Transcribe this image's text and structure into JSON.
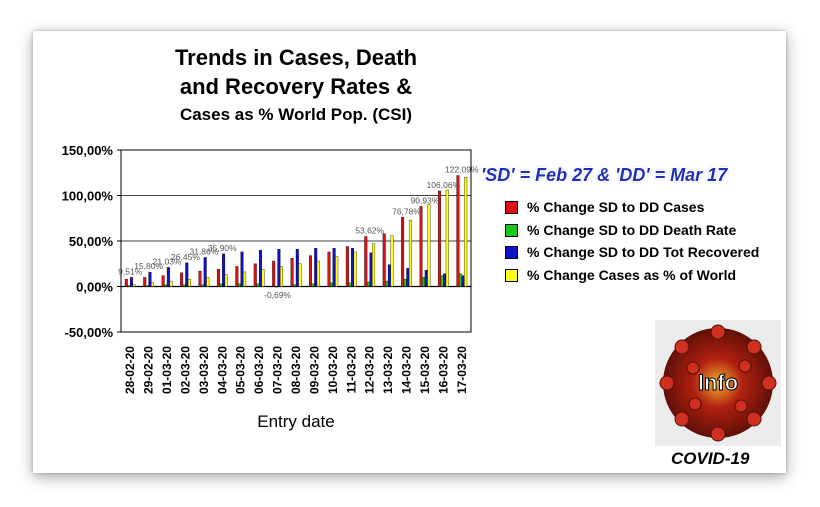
{
  "chart_data": {
    "type": "bar",
    "title": "Trends in Cases, Death and Recovery Rates &",
    "subtitle": "Cases as % World Pop. (CSI)",
    "xlabel": "Entry date",
    "ylabel": "",
    "ylim": [
      -50,
      150
    ],
    "yticks": [
      "-50,00%",
      "0,00%",
      "50,00%",
      "100,00%",
      "150,00%"
    ],
    "grid": true,
    "legend_position": "right",
    "categories": [
      "28-02-20",
      "29-02-20",
      "01-03-20",
      "02-03-20",
      "03-03-20",
      "04-03-20",
      "05-03-20",
      "06-03-20",
      "07-03-20",
      "08-03-20",
      "09-03-20",
      "10-03-20",
      "11-03-20",
      "12-03-20",
      "13-03-20",
      "14-03-20",
      "15-03-20",
      "16-03-20",
      "17-03-20"
    ],
    "series": [
      {
        "name": "% Change SD to DD Cases",
        "color": "#e01010",
        "values": [
          8,
          10,
          12,
          15,
          17,
          19,
          22,
          25,
          28,
          31,
          34,
          38,
          44,
          55,
          58,
          76,
          88,
          105,
          122
        ]
      },
      {
        "name": "% Change SD to DD Death Rate",
        "color": "#18c818",
        "values": [
          1,
          1,
          2,
          2,
          2,
          3,
          3,
          3,
          -0.69,
          2,
          3,
          4,
          4,
          5,
          6,
          8,
          10,
          12,
          14
        ]
      },
      {
        "name": "% Change SD to DD Tot Recovered",
        "color": "#1010c8",
        "values": [
          10,
          15.8,
          21,
          26,
          31.9,
          35.9,
          38,
          40,
          41,
          41,
          42,
          42,
          42,
          37,
          24,
          20,
          18,
          14,
          12
        ]
      },
      {
        "name": "% Change Cases as % of World",
        "color": "#ffff10",
        "values": [
          2,
          4,
          6,
          8,
          10,
          13,
          16,
          19,
          22,
          25,
          28,
          33,
          38,
          47,
          56,
          73,
          90,
          106,
          120
        ]
      }
    ],
    "data_labels": [
      "9,51%",
      "15,80%",
      "21,03%",
      "26,45%",
      "31,86%",
      "35,90%",
      "-0,69%",
      "53,62%",
      "76,78%",
      "90,93%",
      "106,06%",
      "122,09%"
    ]
  },
  "legend_note": "'SD' = Feb 27 & 'DD' = Mar 17",
  "image_label": "COVID-19",
  "image_text": "Info"
}
